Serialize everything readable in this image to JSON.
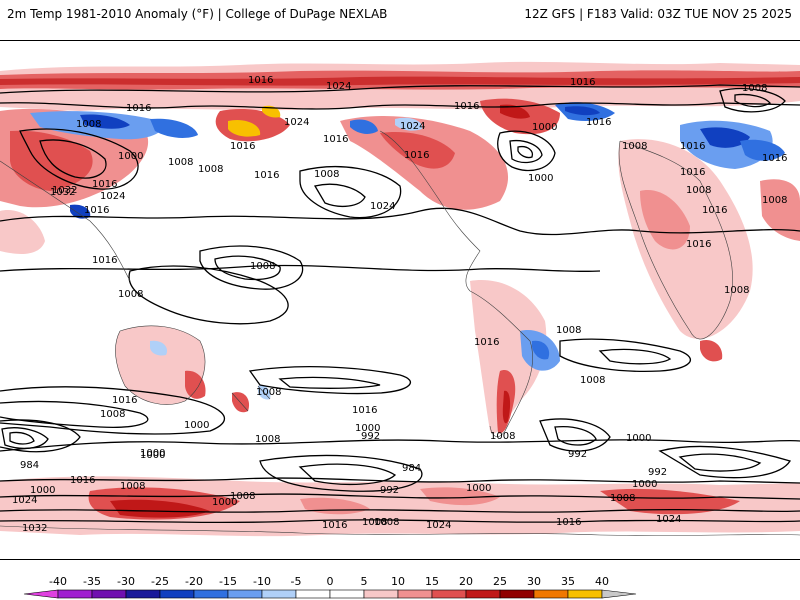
{
  "header": {
    "title": "2m Temp 1981-2010 Anomaly (°F) | College of DuPage NEXLAB",
    "run_info": "12Z GFS | F183 Valid: 03Z TUE NOV 25 2025"
  },
  "map": {
    "contour_labels": [
      {
        "id": "c1",
        "text": "1016"
      },
      {
        "id": "c2",
        "text": "1024"
      },
      {
        "id": "c3",
        "text": "1016"
      },
      {
        "id": "c4",
        "text": "1008"
      },
      {
        "id": "c5",
        "text": "1032"
      },
      {
        "id": "c6",
        "text": "1016"
      },
      {
        "id": "c7",
        "text": "1008"
      },
      {
        "id": "c8",
        "text": "1000"
      },
      {
        "id": "c9",
        "text": "1008"
      },
      {
        "id": "c10",
        "text": "1016"
      },
      {
        "id": "c11",
        "text": "1024"
      },
      {
        "id": "c12",
        "text": "1016"
      },
      {
        "id": "c13",
        "text": "1016"
      },
      {
        "id": "c14",
        "text": "1008"
      },
      {
        "id": "c15",
        "text": "1000"
      },
      {
        "id": "c16",
        "text": "1024"
      },
      {
        "id": "c17",
        "text": "1016"
      },
      {
        "id": "c18",
        "text": "1024"
      },
      {
        "id": "c19",
        "text": "1016"
      },
      {
        "id": "c20",
        "text": "1008"
      },
      {
        "id": "c21",
        "text": "1024"
      },
      {
        "id": "c22",
        "text": "1016"
      },
      {
        "id": "c23",
        "text": "1000"
      },
      {
        "id": "c24",
        "text": "1016"
      },
      {
        "id": "c25",
        "text": "1008"
      },
      {
        "id": "c26",
        "text": "1016"
      },
      {
        "id": "c27",
        "text": "1016"
      },
      {
        "id": "c28",
        "text": "1016"
      },
      {
        "id": "c29",
        "text": "1008"
      },
      {
        "id": "c30",
        "text": "1016"
      },
      {
        "id": "c31",
        "text": "1008"
      },
      {
        "id": "c32",
        "text": "1016"
      },
      {
        "id": "c33",
        "text": "1032"
      },
      {
        "id": "c34",
        "text": "1008"
      },
      {
        "id": "c35",
        "text": "1016"
      },
      {
        "id": "c36",
        "text": "1008"
      },
      {
        "id": "c37",
        "text": "1008"
      },
      {
        "id": "c38",
        "text": "1008"
      },
      {
        "id": "c39",
        "text": "1016"
      },
      {
        "id": "c40",
        "text": "1008"
      },
      {
        "id": "c41",
        "text": "1008"
      },
      {
        "id": "c42",
        "text": "1016"
      },
      {
        "id": "c43",
        "text": "1016"
      },
      {
        "id": "c44",
        "text": "1008"
      },
      {
        "id": "c45",
        "text": "1008"
      },
      {
        "id": "c46",
        "text": "1000"
      },
      {
        "id": "c47",
        "text": "1000"
      },
      {
        "id": "c48",
        "text": "984"
      },
      {
        "id": "c49",
        "text": "1008"
      },
      {
        "id": "c50",
        "text": "1016"
      },
      {
        "id": "c51",
        "text": "1000"
      },
      {
        "id": "c52",
        "text": "992"
      },
      {
        "id": "c53",
        "text": "1008"
      },
      {
        "id": "c54",
        "text": "984"
      },
      {
        "id": "c55",
        "text": "992"
      },
      {
        "id": "c56",
        "text": "1000"
      },
      {
        "id": "c57",
        "text": "992"
      },
      {
        "id": "c58",
        "text": "1000"
      },
      {
        "id": "c59",
        "text": "992"
      },
      {
        "id": "c60",
        "text": "1000"
      },
      {
        "id": "c61",
        "text": "1008"
      },
      {
        "id": "c62",
        "text": "1016"
      },
      {
        "id": "c63",
        "text": "1000"
      },
      {
        "id": "c64",
        "text": "1024"
      },
      {
        "id": "c65",
        "text": "1008"
      },
      {
        "id": "c66",
        "text": "1000"
      },
      {
        "id": "c67",
        "text": "1016"
      },
      {
        "id": "c68",
        "text": "1008"
      },
      {
        "id": "c69",
        "text": "1024"
      },
      {
        "id": "c70",
        "text": "1016"
      },
      {
        "id": "c71",
        "text": "1024"
      },
      {
        "id": "c72",
        "text": "1008"
      },
      {
        "id": "c73",
        "text": "1032"
      },
      {
        "id": "c74",
        "text": "1000"
      }
    ]
  },
  "colorbar": {
    "labels": [
      "-40",
      "-35",
      "-30",
      "-25",
      "-20",
      "-15",
      "-10",
      "-5",
      "0",
      "5",
      "10",
      "15",
      "20",
      "25",
      "30",
      "35",
      "40"
    ],
    "colors": [
      "#e040e0",
      "#a020d0",
      "#7010b0",
      "#1a1a9a",
      "#1040c0",
      "#3070e0",
      "#6a9ef0",
      "#b0d0f8",
      "#ffffff",
      "#ffffff",
      "#f8c8c8",
      "#f09090",
      "#e05050",
      "#c01818",
      "#900000",
      "#f07800",
      "#f8c000",
      "#c8c8c8"
    ]
  }
}
